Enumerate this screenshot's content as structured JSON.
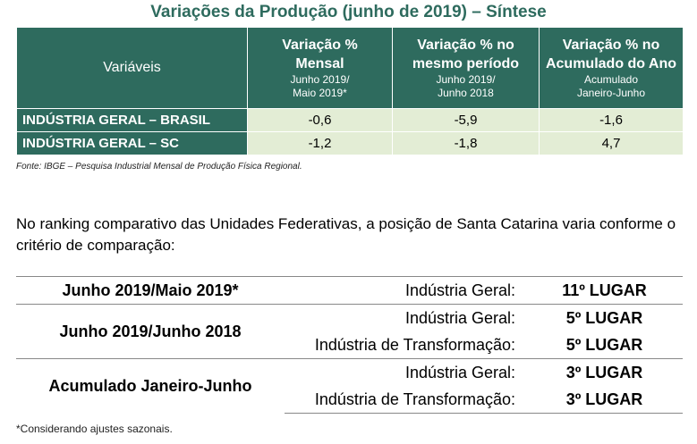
{
  "title": "Variações da Produção (junho de 2019) – Síntese",
  "table1": {
    "header_variaveis": "Variáveis",
    "columns": [
      {
        "main1": "Variação %",
        "main2": "Mensal",
        "sub1": "Junho 2019/",
        "sub2": "Maio 2019*"
      },
      {
        "main1": "Variação % no",
        "main2": "mesmo período",
        "sub1": "Junho 2019/",
        "sub2": "Junho 2018"
      },
      {
        "main1": "Variação % no",
        "main2": "Acumulado do Ano",
        "sub1": "Acumulado",
        "sub2": "Janeiro-Junho"
      }
    ],
    "rows": [
      {
        "label": "INDÚSTRIA GERAL – BRASIL",
        "values": [
          "-0,6",
          "-5,9",
          "-1,6"
        ]
      },
      {
        "label": "INDÚSTRIA GERAL – SC",
        "values": [
          "-1,2",
          "-1,8",
          "4,7"
        ]
      }
    ]
  },
  "fonte": "Fonte: IBGE – Pesquisa Industrial Mensal de Produção Física Regional.",
  "paragraph": "No ranking comparativo das Unidades Federativas, a posição de Santa Catarina varia conforme o critério de comparação:",
  "ranking": {
    "groups": [
      {
        "period": "Junho 2019/Maio 2019*",
        "items": [
          {
            "category": "Indústria Geral:",
            "rank": "11º LUGAR"
          }
        ]
      },
      {
        "period": "Junho 2019/Junho 2018",
        "items": [
          {
            "category": "Indústria Geral:",
            "rank": "5º LUGAR"
          },
          {
            "category": "Indústria de Transformação:",
            "rank": "5º LUGAR"
          }
        ]
      },
      {
        "period": "Acumulado Janeiro-Junho",
        "items": [
          {
            "category": "Indústria Geral:",
            "rank": "3º LUGAR"
          },
          {
            "category": "Indústria de Transformação:",
            "rank": "3º LUGAR"
          }
        ]
      }
    ]
  },
  "nota": "*Considerando ajustes sazonais.",
  "colors": {
    "header_bg": "#2e6b5e",
    "cell_bg": "#e3edd5",
    "title": "#2e6b5e"
  }
}
